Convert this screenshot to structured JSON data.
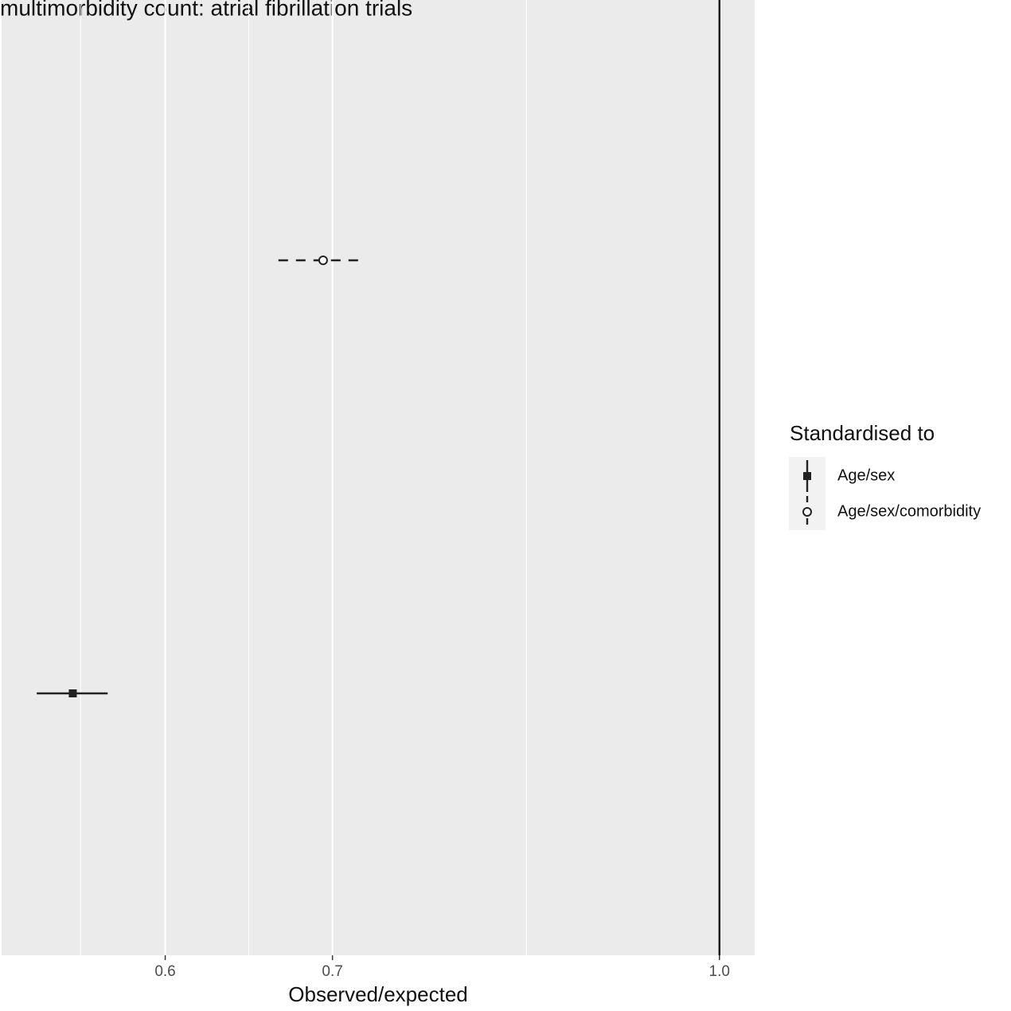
{
  "chart_data": {
    "type": "forest",
    "title": "multimorbidity count: atrial fibrillation trials",
    "x_label": "Observed/expected",
    "x_scale": "log",
    "xlim": [
      0.516,
      1.033
    ],
    "xticks": [
      0.6,
      0.7,
      {
        "value": 1,
        "label": "1.0"
      }
    ],
    "x_minor_ticks": [
      0.555,
      0.648,
      0.837
    ],
    "grid": true,
    "reference_line": 1,
    "legend_title": "Standardised to",
    "legend_position": "right",
    "series": [
      {
        "name": "Age/sex",
        "color": "#222222",
        "shape": "square",
        "linetype": "solid",
        "values": [
          0.551
        ],
        "lower": [
          0.533
        ],
        "upper": [
          0.569
        ]
      },
      {
        "name": "Age/sex/comorbidity",
        "color": "#222222",
        "shape": "open-circle",
        "linetype": "dashed",
        "values": [
          0.694
        ],
        "lower": [
          0.666
        ],
        "upper": [
          0.719
        ]
      }
    ]
  }
}
